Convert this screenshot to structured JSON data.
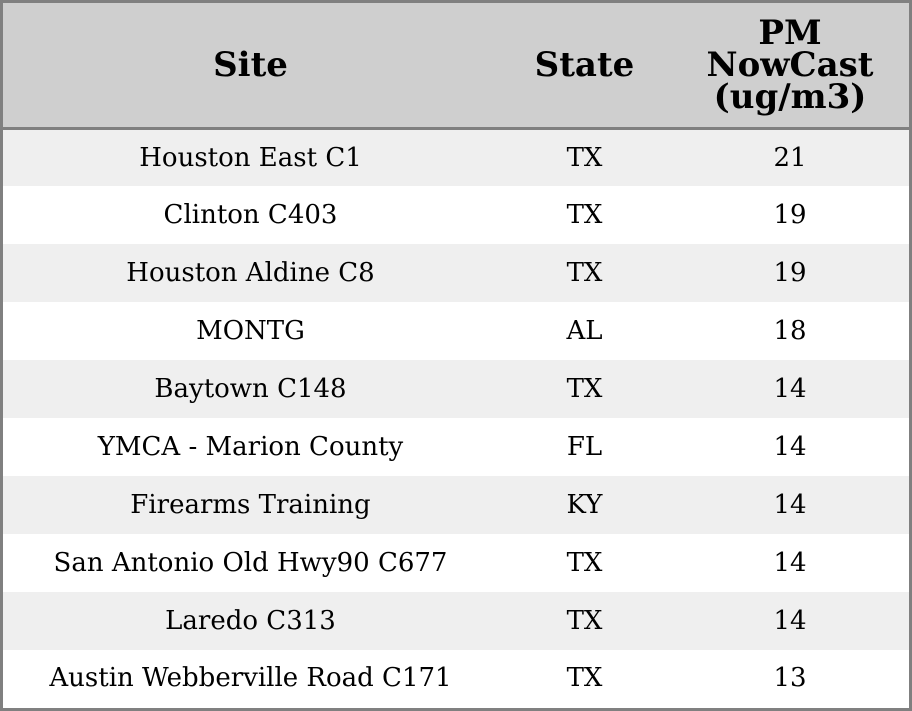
{
  "table": {
    "headers": {
      "site": "Site",
      "state": "State",
      "pm_line1": "PM",
      "pm_line2": "NowCast",
      "pm_line3": "(ug/m3)"
    },
    "rows": [
      {
        "site": "Houston East C1",
        "state": "TX",
        "pm": "21"
      },
      {
        "site": "Clinton C403",
        "state": "TX",
        "pm": "19"
      },
      {
        "site": "Houston Aldine C8",
        "state": "TX",
        "pm": "19"
      },
      {
        "site": "MONTG",
        "state": "AL",
        "pm": "18"
      },
      {
        "site": "Baytown C148",
        "state": "TX",
        "pm": "14"
      },
      {
        "site": "YMCA - Marion County",
        "state": "FL",
        "pm": "14"
      },
      {
        "site": "Firearms Training",
        "state": "KY",
        "pm": "14"
      },
      {
        "site": "San Antonio Old Hwy90 C677",
        "state": "TX",
        "pm": "14"
      },
      {
        "site": "Laredo C313",
        "state": "TX",
        "pm": "14"
      },
      {
        "site": "Austin Webberville Road C171",
        "state": "TX",
        "pm": "13"
      }
    ]
  },
  "colors": {
    "header_bg": "#cfcfcf",
    "row_alt_bg": "#efefef",
    "border": "#808080"
  }
}
